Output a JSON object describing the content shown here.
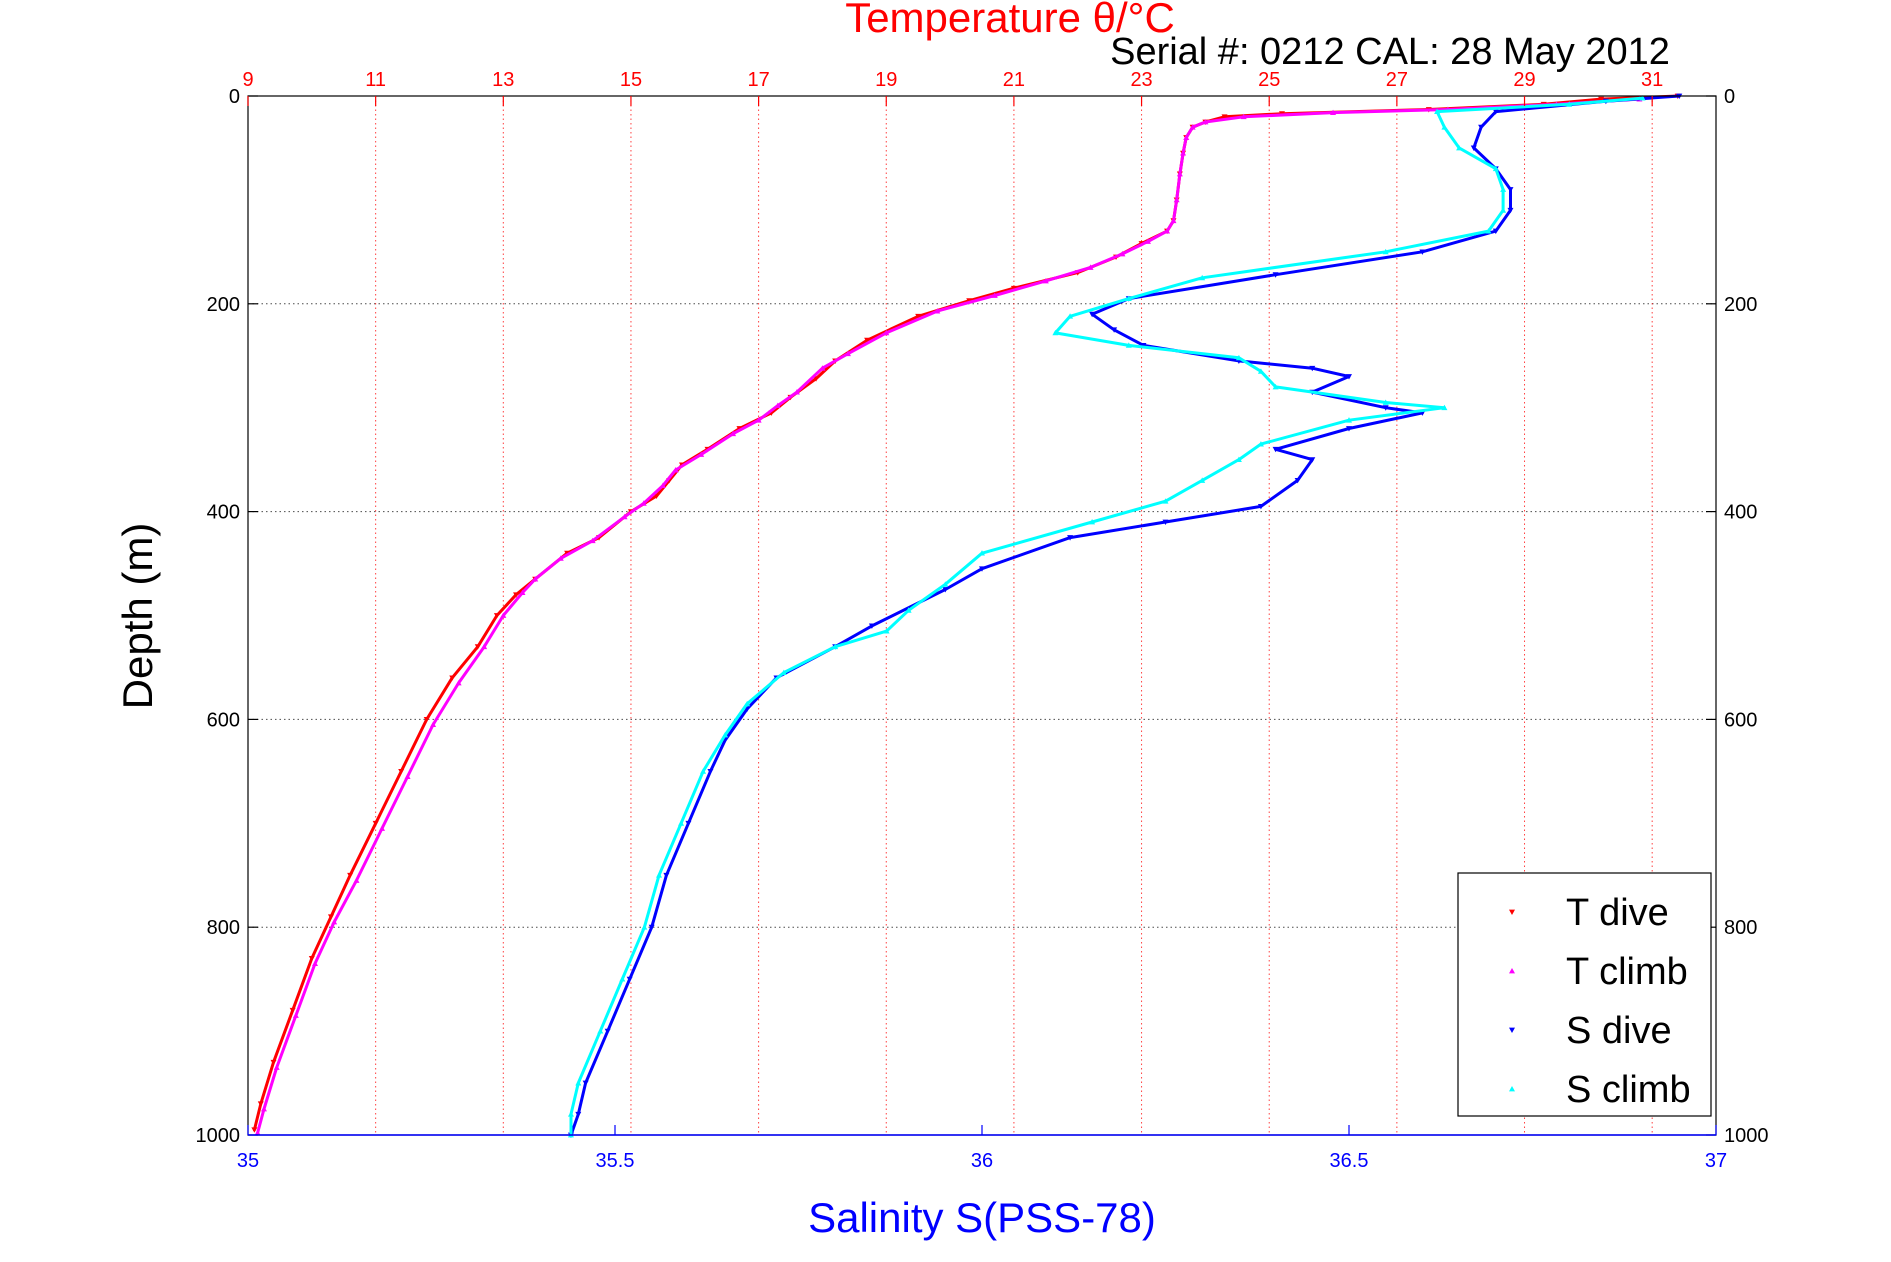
{
  "chart_data": {
    "type": "scatter",
    "title": "Temperature θ/°C",
    "subtitle": "Serial #: 0212  CAL: 28 May 2012",
    "ylabel": "Depth (m)",
    "xlabel_bottom": "Salinity S(PSS-78)",
    "xlabel_top": "Temperature θ/°C",
    "ylim": [
      0,
      1000
    ],
    "y_reversed": true,
    "salinity_xlim": [
      35,
      37
    ],
    "temperature_xlim": [
      9,
      32
    ],
    "y_ticks": [
      0,
      200,
      400,
      600,
      800,
      1000
    ],
    "salinity_ticks": [
      35,
      35.5,
      36,
      36.5,
      37
    ],
    "salinity_tick_labels": [
      "35",
      "35.5",
      "36",
      "36.5",
      "37"
    ],
    "temperature_ticks": [
      9,
      11,
      13,
      15,
      17,
      19,
      21,
      23,
      25,
      27,
      29,
      31
    ],
    "grid": true,
    "legend_position": "bottom-right",
    "legend": [
      "T dive",
      "T climb",
      "S dive",
      "S climb"
    ],
    "colors": {
      "t_dive": "#ff0000",
      "t_climb": "#ff00ff",
      "s_dive": "#0000ff",
      "s_climb": "#00ffff",
      "temperature_axis": "#ff0000",
      "salinity_axis": "#0000ff"
    },
    "series": [
      {
        "name": "T dive",
        "axis": "temperature",
        "marker": "triangle-down",
        "points": [
          [
            31.4,
            0
          ],
          [
            30.2,
            3
          ],
          [
            29.3,
            8
          ],
          [
            27.5,
            13
          ],
          [
            25.2,
            17
          ],
          [
            24.3,
            20
          ],
          [
            24.0,
            25
          ],
          [
            23.8,
            30
          ],
          [
            23.7,
            40
          ],
          [
            23.65,
            55
          ],
          [
            23.6,
            75
          ],
          [
            23.55,
            100
          ],
          [
            23.5,
            120
          ],
          [
            23.4,
            130
          ],
          [
            23.0,
            142
          ],
          [
            22.6,
            155
          ],
          [
            22.0,
            170
          ],
          [
            21.0,
            185
          ],
          [
            20.3,
            197
          ],
          [
            19.5,
            212
          ],
          [
            18.7,
            235
          ],
          [
            18.2,
            255
          ],
          [
            17.9,
            272
          ],
          [
            17.5,
            290
          ],
          [
            17.2,
            305
          ],
          [
            16.7,
            320
          ],
          [
            16.2,
            340
          ],
          [
            15.8,
            355
          ],
          [
            15.6,
            370
          ],
          [
            15.4,
            385
          ],
          [
            15.0,
            400
          ],
          [
            14.5,
            425
          ],
          [
            14.0,
            440
          ],
          [
            13.5,
            465
          ],
          [
            13.2,
            480
          ],
          [
            12.9,
            500
          ],
          [
            12.6,
            530
          ],
          [
            12.2,
            560
          ],
          [
            11.8,
            600
          ],
          [
            11.4,
            650
          ],
          [
            11.0,
            700
          ],
          [
            10.6,
            750
          ],
          [
            10.3,
            790
          ],
          [
            10.0,
            830
          ],
          [
            9.7,
            880
          ],
          [
            9.4,
            930
          ],
          [
            9.2,
            970
          ],
          [
            9.1,
            995
          ]
        ]
      },
      {
        "name": "T climb",
        "axis": "temperature",
        "marker": "triangle-up",
        "points": [
          [
            30.8,
            3
          ],
          [
            29.5,
            8
          ],
          [
            27.8,
            13
          ],
          [
            26.0,
            16
          ],
          [
            24.6,
            20
          ],
          [
            24.0,
            25
          ],
          [
            23.8,
            30
          ],
          [
            23.7,
            40
          ],
          [
            23.65,
            55
          ],
          [
            23.6,
            75
          ],
          [
            23.55,
            100
          ],
          [
            23.5,
            120
          ],
          [
            23.4,
            130
          ],
          [
            23.1,
            140
          ],
          [
            22.7,
            152
          ],
          [
            22.2,
            165
          ],
          [
            21.5,
            178
          ],
          [
            20.7,
            192
          ],
          [
            19.8,
            207
          ],
          [
            19.0,
            228
          ],
          [
            18.4,
            248
          ],
          [
            18.0,
            262
          ],
          [
            17.6,
            285
          ],
          [
            17.3,
            298
          ],
          [
            17.0,
            312
          ],
          [
            16.6,
            325
          ],
          [
            16.1,
            345
          ],
          [
            15.7,
            360
          ],
          [
            15.5,
            375
          ],
          [
            15.2,
            392
          ],
          [
            14.9,
            405
          ],
          [
            14.4,
            428
          ],
          [
            13.9,
            445
          ],
          [
            13.5,
            465
          ],
          [
            13.3,
            478
          ],
          [
            13.0,
            500
          ],
          [
            12.7,
            530
          ],
          [
            12.3,
            565
          ],
          [
            11.9,
            605
          ],
          [
            11.5,
            655
          ],
          [
            11.1,
            705
          ],
          [
            10.7,
            755
          ],
          [
            10.35,
            795
          ],
          [
            10.05,
            835
          ],
          [
            9.75,
            885
          ],
          [
            9.45,
            935
          ],
          [
            9.25,
            975
          ],
          [
            9.15,
            998
          ]
        ]
      },
      {
        "name": "S dive",
        "axis": "salinity",
        "marker": "triangle-down",
        "points": [
          [
            36.95,
            0
          ],
          [
            36.85,
            5
          ],
          [
            36.7,
            15
          ],
          [
            36.68,
            30
          ],
          [
            36.67,
            50
          ],
          [
            36.7,
            70
          ],
          [
            36.72,
            90
          ],
          [
            36.72,
            110
          ],
          [
            36.7,
            130
          ],
          [
            36.6,
            150
          ],
          [
            36.4,
            172
          ],
          [
            36.2,
            195
          ],
          [
            36.15,
            210
          ],
          [
            36.18,
            225
          ],
          [
            36.22,
            240
          ],
          [
            36.35,
            255
          ],
          [
            36.45,
            262
          ],
          [
            36.5,
            270
          ],
          [
            36.45,
            285
          ],
          [
            36.55,
            300
          ],
          [
            36.6,
            305
          ],
          [
            36.5,
            320
          ],
          [
            36.4,
            340
          ],
          [
            36.45,
            350
          ],
          [
            36.43,
            370
          ],
          [
            36.38,
            395
          ],
          [
            36.25,
            410
          ],
          [
            36.12,
            425
          ],
          [
            36.0,
            455
          ],
          [
            35.95,
            475
          ],
          [
            35.85,
            510
          ],
          [
            35.8,
            530
          ],
          [
            35.72,
            560
          ],
          [
            35.68,
            590
          ],
          [
            35.65,
            620
          ],
          [
            35.63,
            650
          ],
          [
            35.6,
            700
          ],
          [
            35.57,
            750
          ],
          [
            35.55,
            800
          ],
          [
            35.52,
            850
          ],
          [
            35.49,
            900
          ],
          [
            35.46,
            950
          ],
          [
            35.45,
            980
          ],
          [
            35.44,
            1000
          ]
        ]
      },
      {
        "name": "S climb",
        "axis": "salinity",
        "marker": "triangle-up",
        "points": [
          [
            36.9,
            2
          ],
          [
            36.8,
            8
          ],
          [
            36.62,
            15
          ],
          [
            36.63,
            30
          ],
          [
            36.65,
            50
          ],
          [
            36.7,
            70
          ],
          [
            36.71,
            90
          ],
          [
            36.71,
            110
          ],
          [
            36.69,
            130
          ],
          [
            36.55,
            150
          ],
          [
            36.3,
            175
          ],
          [
            36.2,
            195
          ],
          [
            36.12,
            212
          ],
          [
            36.1,
            228
          ],
          [
            36.2,
            240
          ],
          [
            36.35,
            252
          ],
          [
            36.38,
            265
          ],
          [
            36.4,
            280
          ],
          [
            36.55,
            295
          ],
          [
            36.63,
            300
          ],
          [
            36.5,
            312
          ],
          [
            36.38,
            335
          ],
          [
            36.35,
            350
          ],
          [
            36.3,
            370
          ],
          [
            36.25,
            390
          ],
          [
            36.15,
            410
          ],
          [
            36.0,
            440
          ],
          [
            35.95,
            470
          ],
          [
            35.9,
            495
          ],
          [
            35.87,
            515
          ],
          [
            35.8,
            530
          ],
          [
            35.73,
            555
          ],
          [
            35.68,
            585
          ],
          [
            35.65,
            615
          ],
          [
            35.62,
            650
          ],
          [
            35.59,
            700
          ],
          [
            35.56,
            750
          ],
          [
            35.54,
            800
          ],
          [
            35.51,
            850
          ],
          [
            35.48,
            900
          ],
          [
            35.45,
            950
          ],
          [
            35.44,
            980
          ],
          [
            35.44,
            1000
          ]
        ]
      }
    ]
  }
}
